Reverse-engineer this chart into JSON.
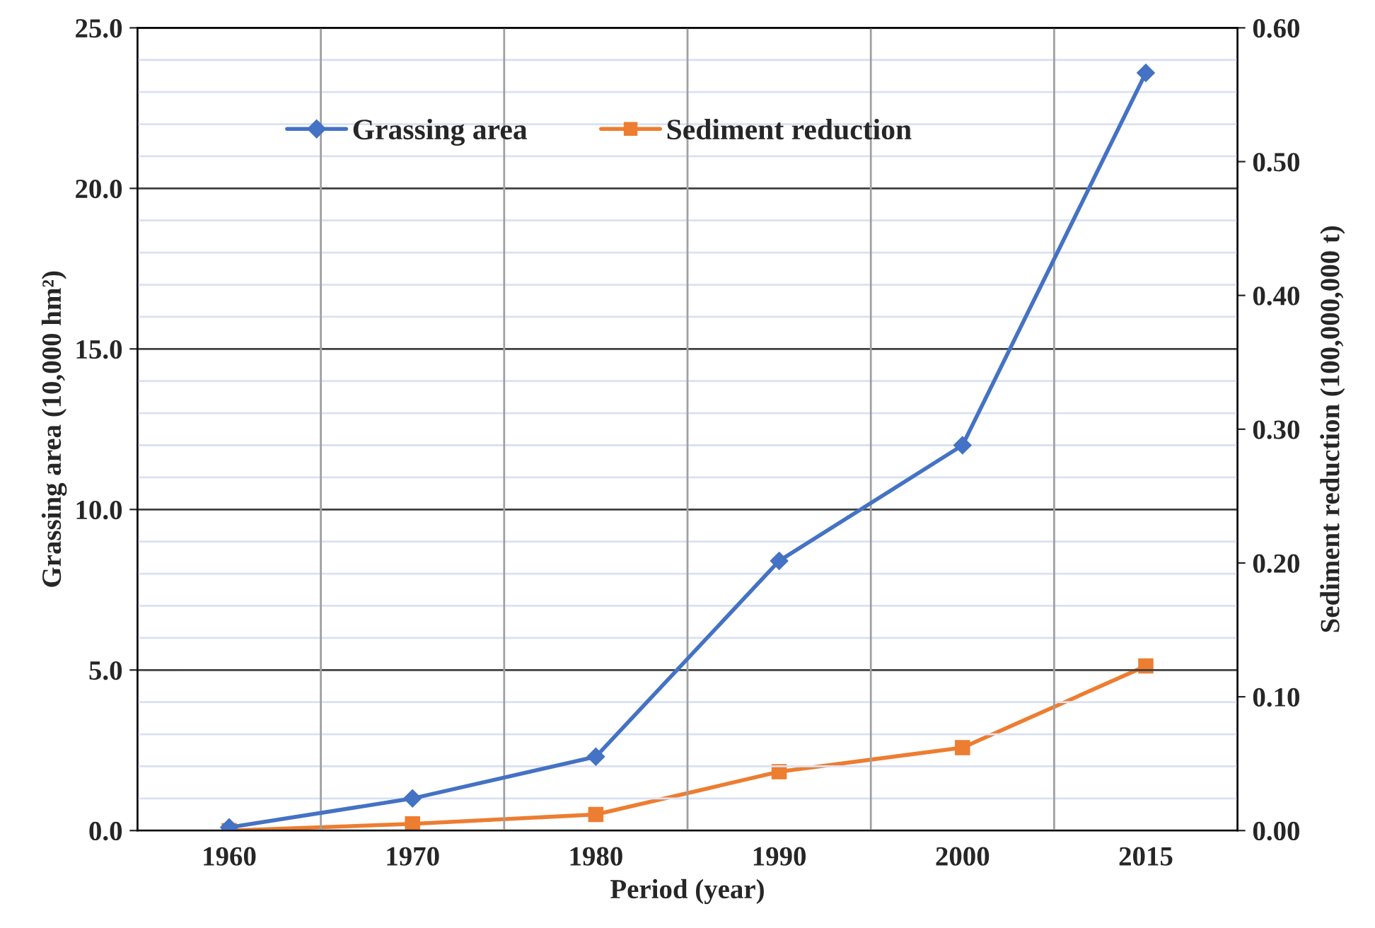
{
  "chart_data": {
    "type": "line",
    "xlabel": "Period (year)",
    "ylabel": "Grassing area (10,000 hm²)",
    "y2label": "Sediment reduction (100,000,000 t)",
    "categories": [
      "1960",
      "1970",
      "1980",
      "1990",
      "2000",
      "2015"
    ],
    "series": [
      {
        "name": "Grassing area",
        "color": "#4472c4",
        "marker": "diamond",
        "values": [
          0.1,
          1.0,
          2.3,
          8.4,
          12.0,
          23.6
        ]
      },
      {
        "name": "Sediment reduction",
        "color": "#ed7d31",
        "marker": "square",
        "axis": "y2",
        "values": [
          0.0,
          0.005,
          0.012,
          0.044,
          0.062,
          0.123
        ]
      }
    ],
    "ylim": [
      0,
      25
    ],
    "yticks": [
      {
        "value": 0,
        "label": "0.0"
      },
      {
        "value": 5,
        "label": "5.0"
      },
      {
        "value": 10,
        "label": "10.0"
      },
      {
        "value": 15,
        "label": "15.0"
      },
      {
        "value": 20,
        "label": "20.0"
      },
      {
        "value": 25,
        "label": "25.0"
      }
    ],
    "y2lim": [
      0,
      0.6
    ],
    "y2ticks": [
      {
        "value": 0,
        "label": "0.00"
      },
      {
        "value": 0.1,
        "label": "0.10"
      },
      {
        "value": 0.2,
        "label": "0.20"
      },
      {
        "value": 0.3,
        "label": "0.30"
      },
      {
        "value": 0.4,
        "label": "0.40"
      },
      {
        "value": 0.5,
        "label": "0.50"
      },
      {
        "value": 0.6,
        "label": "0.60"
      }
    ],
    "grid": true,
    "legend": "top"
  }
}
